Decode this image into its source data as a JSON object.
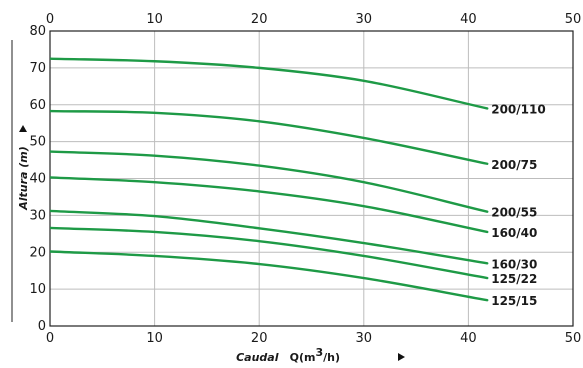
{
  "chart_data": {
    "type": "line",
    "title": "",
    "xlabel": "Caudal",
    "xunit_prefix": "Q(m",
    "xunit_sup": "3",
    "xunit_suffix": "/h)",
    "ylabel": "Altura (m)",
    "xlim": [
      0,
      50
    ],
    "ylim": [
      0,
      80
    ],
    "x_ticks": [
      0,
      10,
      20,
      30,
      40,
      50
    ],
    "y_ticks": [
      0,
      10,
      20,
      30,
      40,
      50,
      60,
      70,
      80
    ],
    "grid": true,
    "legend": "curve-end labels",
    "line_color": "#1e9a46",
    "series": [
      {
        "name": "200/110",
        "x": [
          0,
          10,
          20,
          30,
          41.8
        ],
        "y": [
          72.5,
          71.8,
          70.0,
          66.5,
          59.0
        ]
      },
      {
        "name": "200/75",
        "x": [
          0,
          10,
          20,
          30,
          41.8
        ],
        "y": [
          58.3,
          57.8,
          55.5,
          51.0,
          44.0
        ]
      },
      {
        "name": "200/55",
        "x": [
          0,
          10,
          20,
          30,
          41.8
        ],
        "y": [
          47.3,
          46.2,
          43.5,
          39.0,
          31.0
        ]
      },
      {
        "name": "160/40",
        "x": [
          0,
          10,
          20,
          30,
          41.8
        ],
        "y": [
          40.3,
          39.0,
          36.5,
          32.5,
          25.5
        ]
      },
      {
        "name": "160/30",
        "x": [
          0,
          10,
          20,
          30,
          41.8
        ],
        "y": [
          31.2,
          29.8,
          26.5,
          22.5,
          17.0
        ]
      },
      {
        "name": "125/22",
        "x": [
          0,
          10,
          20,
          30,
          41.8
        ],
        "y": [
          26.6,
          25.5,
          23.0,
          19.0,
          13.0
        ]
      },
      {
        "name": "125/15",
        "x": [
          0,
          10,
          20,
          30,
          41.8
        ],
        "y": [
          20.2,
          19.0,
          16.8,
          13.0,
          7.0
        ]
      }
    ]
  }
}
